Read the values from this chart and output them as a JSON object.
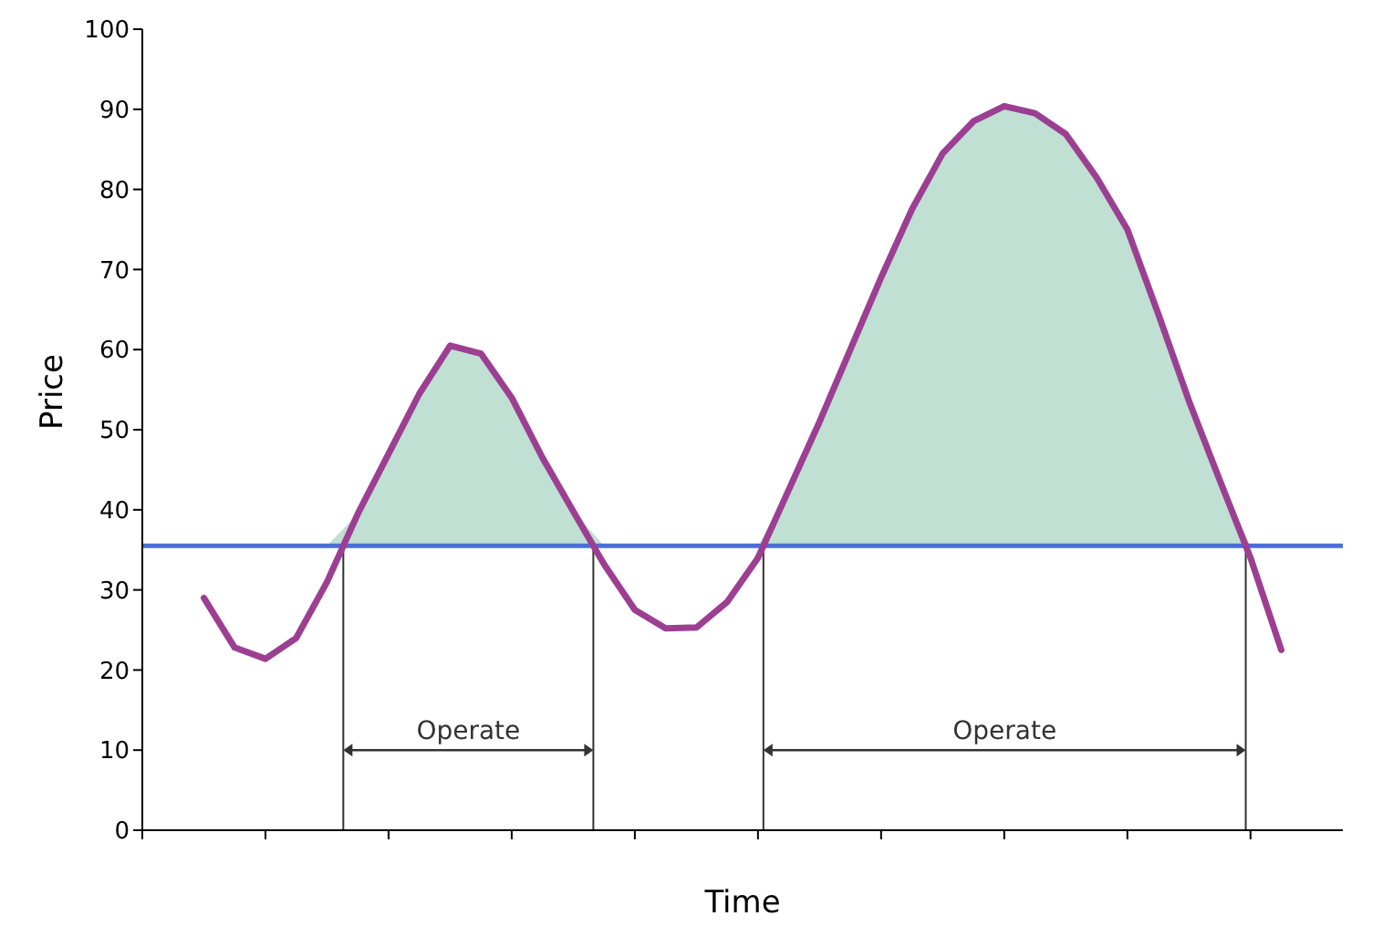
{
  "chart_data": {
    "type": "line",
    "xlabel": "Time",
    "ylabel": "Price",
    "categories": [
      null,
      null,
      null,
      null,
      null,
      null,
      null,
      null,
      null,
      null,
      null,
      null,
      null,
      null,
      null,
      null,
      null,
      null,
      null,
      null,
      null,
      null,
      null,
      null,
      null,
      null,
      null,
      null,
      null,
      null,
      null,
      null,
      null,
      null,
      null,
      null
    ],
    "ylim": [
      0,
      100
    ],
    "yticks": [
      0,
      10,
      20,
      30,
      40,
      50,
      60,
      70,
      80,
      90,
      100
    ],
    "tick_labels": "y",
    "marker": "none",
    "line_style": "solid",
    "series": [
      {
        "color": "#9c3f92",
        "values": [
          29,
          22.8,
          21.4,
          24,
          31,
          39.5,
          47,
          54.5,
          60.5,
          59.5,
          54,
          46.5,
          39.8,
          33.2,
          27.5,
          25.2,
          25.3,
          28.5,
          34,
          42.5,
          51,
          60,
          69,
          77.5,
          84.5,
          88.5,
          90.4,
          89.5,
          86.9,
          81.5,
          75,
          64.5,
          53.6,
          43.7,
          34,
          22.5
        ],
        "lower": [
          35.5,
          35.5,
          35.5,
          35.5,
          35.5,
          35.5,
          35.5,
          35.5,
          35.5,
          35.5,
          35.5,
          35.5,
          35.5,
          35.5,
          35.5,
          35.5,
          35.5,
          35.5,
          35.5,
          35.5,
          35.5,
          35.5,
          35.5,
          35.5,
          35.5,
          35.5,
          35.5,
          35.5,
          35.5,
          35.5,
          35.5,
          35.5,
          35.5,
          35.5,
          35.5,
          35.5
        ],
        "upper": [
          35.5,
          35.5,
          35.5,
          35.5,
          35.5,
          39.5,
          47,
          54.5,
          60.5,
          59.5,
          54,
          46.5,
          39.8,
          35.5,
          35.5,
          35.5,
          35.5,
          35.5,
          35.5,
          42.5,
          51,
          60,
          69,
          77.5,
          84.5,
          88.5,
          90.4,
          89.5,
          86.9,
          81.5,
          75,
          64.5,
          53.6,
          43.7,
          35.5,
          35.5
        ]
      }
    ],
    "ref_lines": [
      {
        "axis": "y",
        "value": 35.5,
        "label": null,
        "color": "#4a6fd8",
        "line_style": "solid"
      }
    ],
    "annotations": [
      "Operate",
      "Operate"
    ]
  }
}
